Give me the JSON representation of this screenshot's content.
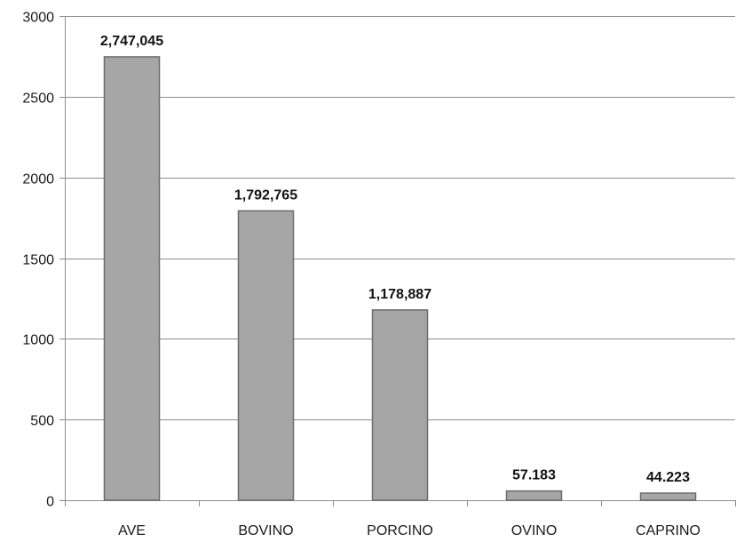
{
  "chart_data": {
    "type": "bar",
    "categories": [
      "AVE",
      "BOVINO",
      "PORCINO",
      "OVINO",
      "CAPRINO"
    ],
    "values": [
      2747.045,
      1792.765,
      1178.887,
      57.183,
      44.223
    ],
    "data_labels": [
      "2,747,045",
      "1,792,765",
      "1,178,887",
      "57.183",
      "44.223"
    ],
    "title": "",
    "xlabel": "",
    "ylabel": "",
    "ylim": [
      0,
      3000
    ],
    "yticks": [
      0,
      500,
      1000,
      1500,
      2000,
      2500,
      3000
    ],
    "ytick_labels": [
      "0",
      "500",
      "1000",
      "1500",
      "2000",
      "2500",
      "3000"
    ],
    "grid": true,
    "legend": "none",
    "colors": {
      "bar_fill": "#a6a6a6",
      "bar_stroke": "#6b6b6b",
      "grid": "#8c8c8c",
      "axis": "#8c8c8c"
    }
  }
}
